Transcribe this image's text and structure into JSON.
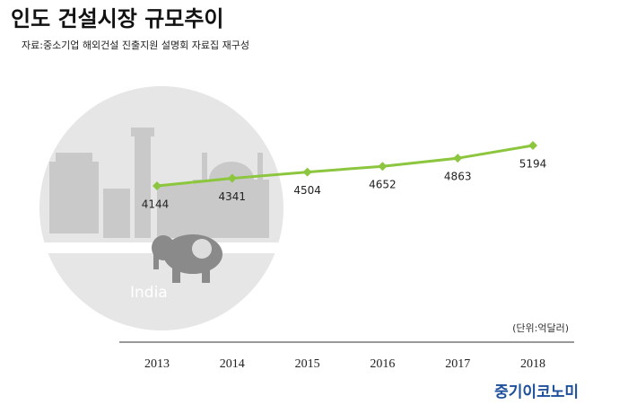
{
  "chart_data": {
    "type": "line",
    "title": "인도 건설시장 규모추이",
    "subtitle": "자료:중소기업 해외건설 진출지원 설명회 자료집 재구성",
    "unit_label": "(단위:억달러)",
    "image_label": "India",
    "brand": "중기이코노미",
    "categories": [
      "2013",
      "2014",
      "2015",
      "2016",
      "2017",
      "2018"
    ],
    "values": [
      4144,
      4341,
      4504,
      4652,
      4863,
      5194
    ],
    "color": "#8cc63e"
  }
}
